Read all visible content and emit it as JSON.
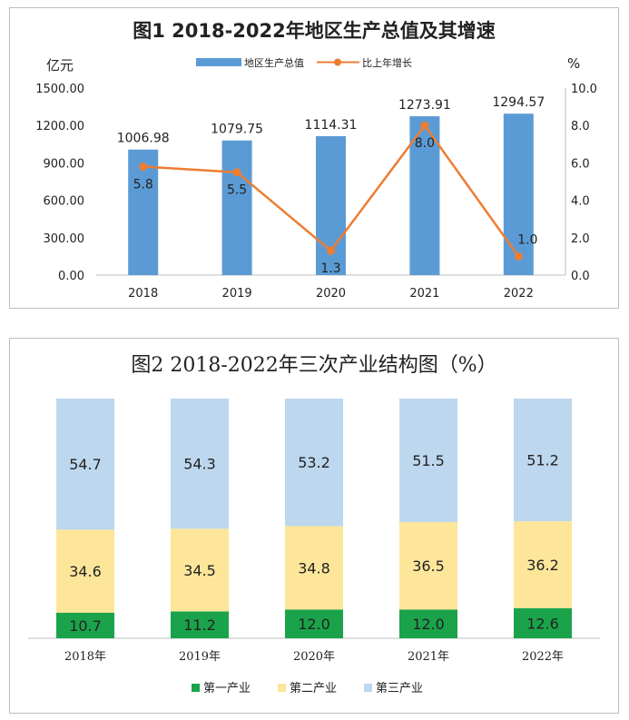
{
  "chart_data": [
    {
      "type": "bar",
      "title": "图1  2018-2022年地区生产总值及其增速",
      "ylabel_left": "亿元",
      "ylabel_right": "%",
      "categories": [
        "2018",
        "2019",
        "2020",
        "2021",
        "2022"
      ],
      "yticks_left": [
        "1500.00",
        "1200.00",
        "900.00",
        "600.00",
        "300.00",
        "0.00"
      ],
      "yticks_right": [
        "10.0",
        "8.0",
        "6.0",
        "4.0",
        "2.0",
        "0.0"
      ],
      "ylim_left": [
        0,
        1500
      ],
      "ylim_right": [
        0,
        10
      ],
      "legend_position": "top",
      "grid": false,
      "series": [
        {
          "name": "地区生产总值",
          "type": "bar",
          "axis": "left",
          "color": "#5b9bd5",
          "values": [
            1006.98,
            1079.75,
            1114.31,
            1273.91,
            1294.57
          ],
          "labels": [
            "1006.98",
            "1079.75",
            "1114.31",
            "1273.91",
            "1294.57"
          ]
        },
        {
          "name": "比上年增长",
          "type": "line",
          "axis": "right",
          "color": "#ed7d31",
          "values": [
            5.8,
            5.5,
            1.3,
            8.0,
            1.0
          ],
          "labels": [
            "5.8",
            "5.5",
            "1.3",
            "8.0",
            "1.0"
          ]
        }
      ]
    },
    {
      "type": "bar",
      "stacked": true,
      "title": "图2  2018-2022年三次产业结构图（%）",
      "categories": [
        "2018年",
        "2019年",
        "2020年",
        "2021年",
        "2022年"
      ],
      "ylim": [
        0,
        100
      ],
      "legend_position": "bottom",
      "grid": false,
      "series": [
        {
          "name": "第一产业",
          "color": "#1aa34a",
          "values": [
            10.7,
            11.2,
            12.0,
            12.0,
            12.6
          ],
          "labels": [
            "10.7",
            "11.2",
            "12.0",
            "12.0",
            "12.6"
          ]
        },
        {
          "name": "第二产业",
          "color": "#fde69a",
          "values": [
            34.6,
            34.5,
            34.8,
            36.5,
            36.2
          ],
          "labels": [
            "34.6",
            "34.5",
            "34.8",
            "36.5",
            "36.2"
          ]
        },
        {
          "name": "第三产业",
          "color": "#bdd7ee",
          "values": [
            54.7,
            54.3,
            53.2,
            51.5,
            51.2
          ],
          "labels": [
            "54.7",
            "54.3",
            "53.2",
            "51.5",
            "51.2"
          ]
        }
      ]
    }
  ]
}
